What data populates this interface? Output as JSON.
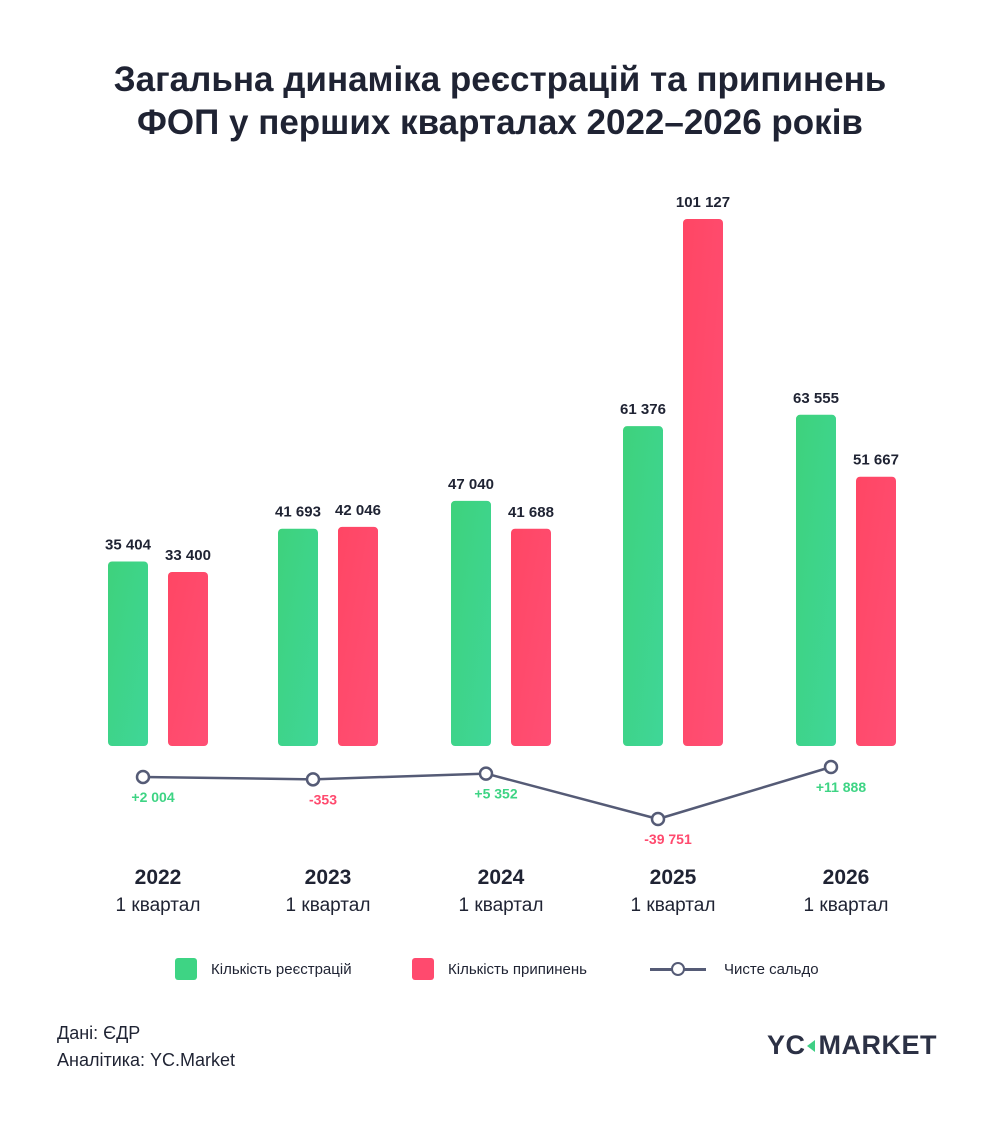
{
  "title": {
    "line1": "Загальна динаміка реєстрацій та припинень",
    "line2": "ФОП у перших кварталах 2022–2026 років"
  },
  "chart_data": {
    "type": "bar",
    "categories": [
      "2022",
      "2023",
      "2024",
      "2025",
      "2026"
    ],
    "category_sublabel": "1 квартал",
    "series": [
      {
        "name": "Кількість реєстрацій",
        "type": "bar",
        "color": "#3ed484",
        "values": [
          35404,
          41693,
          47040,
          61376,
          63555
        ],
        "labels": [
          "35 404",
          "41 693",
          "47 040",
          "61 376",
          "63 555"
        ]
      },
      {
        "name": "Кількість припинень",
        "type": "bar",
        "color": "#ff4a6e",
        "values": [
          33400,
          42046,
          41688,
          101127,
          51667
        ],
        "labels": [
          "33 400",
          "42 046",
          "41 688",
          "101 127",
          "51 667"
        ]
      },
      {
        "name": "Чисте сальдо",
        "type": "line",
        "color": "#555b76",
        "values": [
          2004,
          -353,
          5352,
          -39751,
          11888
        ],
        "labels": [
          "+2 004",
          "-353",
          "+5 352",
          "-39 751",
          "+11 888"
        ]
      }
    ],
    "positive_color": "#3ed484",
    "negative_color": "#ff4a6e",
    "legend_position": "bottom",
    "grid": false
  },
  "footer": {
    "data_source": "Дані: ЄДР",
    "analytics": "Аналітика: YC.Market"
  },
  "logo": {
    "left": "YC",
    "right": "MARKET"
  }
}
